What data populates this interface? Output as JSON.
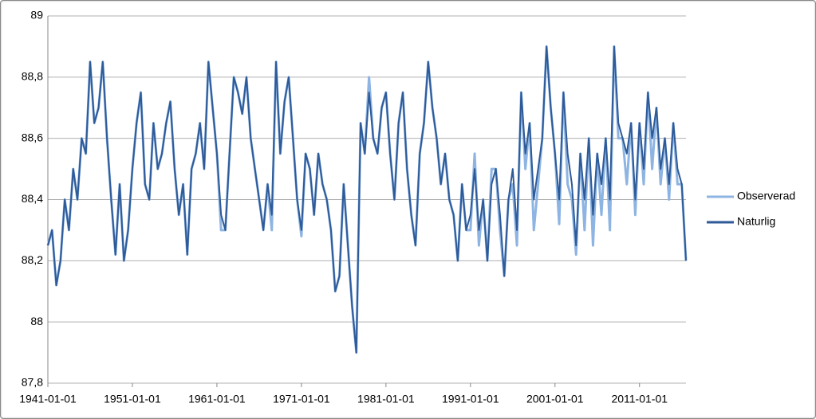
{
  "chart_data": {
    "type": "line",
    "x": [
      "1941-01-01",
      "1941-07-01",
      "1942-01-01",
      "1942-07-01",
      "1943-01-01",
      "1943-07-01",
      "1944-01-01",
      "1944-07-01",
      "1945-01-01",
      "1945-07-01",
      "1946-01-01",
      "1946-07-01",
      "1947-01-01",
      "1947-07-01",
      "1948-01-01",
      "1948-07-01",
      "1949-01-01",
      "1949-07-01",
      "1950-01-01",
      "1950-07-01",
      "1951-01-01",
      "1951-07-01",
      "1952-01-01",
      "1952-07-01",
      "1953-01-01",
      "1953-07-01",
      "1954-01-01",
      "1954-07-01",
      "1955-01-01",
      "1955-07-01",
      "1956-01-01",
      "1956-07-01",
      "1957-01-01",
      "1957-07-01",
      "1958-01-01",
      "1958-07-01",
      "1959-01-01",
      "1959-07-01",
      "1960-01-01",
      "1960-07-01",
      "1961-01-01",
      "1961-07-01",
      "1962-01-01",
      "1962-07-01",
      "1963-01-01",
      "1963-07-01",
      "1964-01-01",
      "1964-07-01",
      "1965-01-01",
      "1965-07-01",
      "1966-01-01",
      "1966-07-01",
      "1967-01-01",
      "1967-07-01",
      "1968-01-01",
      "1968-07-01",
      "1969-01-01",
      "1969-07-01",
      "1970-01-01",
      "1970-07-01",
      "1971-01-01",
      "1971-07-01",
      "1972-01-01",
      "1972-07-01",
      "1973-01-01",
      "1973-07-01",
      "1974-01-01",
      "1974-07-01",
      "1975-01-01",
      "1975-07-01",
      "1976-01-01",
      "1976-07-01",
      "1977-01-01",
      "1977-07-01",
      "1978-01-01",
      "1978-07-01",
      "1979-01-01",
      "1979-07-01",
      "1980-01-01",
      "1980-07-01",
      "1981-01-01",
      "1981-07-01",
      "1982-01-01",
      "1982-07-01",
      "1983-01-01",
      "1983-07-01",
      "1984-01-01",
      "1984-07-01",
      "1985-01-01",
      "1985-07-01",
      "1986-01-01",
      "1986-07-01",
      "1987-01-01",
      "1987-07-01",
      "1988-01-01",
      "1988-07-01",
      "1989-01-01",
      "1989-07-01",
      "1990-01-01",
      "1990-07-01",
      "1991-01-01",
      "1991-07-01",
      "1992-01-01",
      "1992-07-01",
      "1993-01-01",
      "1993-07-01",
      "1994-01-01",
      "1994-07-01",
      "1995-01-01",
      "1995-07-01",
      "1996-01-01",
      "1996-07-01",
      "1997-01-01",
      "1997-07-01",
      "1998-01-01",
      "1998-07-01",
      "1999-01-01",
      "1999-07-01",
      "2000-01-01",
      "2000-07-01",
      "2001-01-01",
      "2001-07-01",
      "2002-01-01",
      "2002-07-01",
      "2003-01-01",
      "2003-07-01",
      "2004-01-01",
      "2004-07-01",
      "2005-01-01",
      "2005-07-01",
      "2006-01-01",
      "2006-07-01",
      "2007-01-01",
      "2007-07-01",
      "2008-01-01",
      "2008-07-01",
      "2009-01-01",
      "2009-07-01",
      "2010-01-01",
      "2010-07-01",
      "2011-01-01",
      "2011-07-01",
      "2012-01-01",
      "2012-07-01",
      "2013-01-01",
      "2013-07-01",
      "2014-01-01",
      "2014-07-01",
      "2015-01-01",
      "2015-07-01",
      "2016-01-01",
      "2016-07-01"
    ],
    "series": [
      {
        "name": "Observerad",
        "color": "#8db4e2",
        "width": 3,
        "values": [
          88.25,
          88.3,
          88.12,
          88.2,
          88.4,
          88.3,
          88.5,
          88.4,
          88.6,
          88.55,
          88.85,
          88.65,
          88.7,
          88.85,
          88.6,
          88.4,
          88.22,
          88.45,
          88.2,
          88.3,
          88.5,
          88.65,
          88.75,
          88.45,
          88.4,
          88.65,
          88.5,
          88.55,
          88.65,
          88.72,
          88.5,
          88.35,
          88.45,
          88.22,
          88.5,
          88.55,
          88.65,
          88.5,
          88.85,
          88.7,
          88.55,
          88.3,
          88.3,
          88.55,
          88.8,
          88.75,
          88.68,
          88.8,
          88.6,
          88.5,
          88.4,
          88.3,
          88.45,
          88.3,
          88.85,
          88.55,
          88.72,
          88.8,
          88.6,
          88.4,
          88.28,
          88.55,
          88.5,
          88.35,
          88.55,
          88.45,
          88.4,
          88.3,
          88.1,
          88.15,
          88.45,
          88.25,
          88.05,
          87.9,
          88.65,
          88.55,
          88.8,
          88.6,
          88.55,
          88.7,
          88.75,
          88.55,
          88.4,
          88.65,
          88.75,
          88.5,
          88.35,
          88.25,
          88.55,
          88.65,
          88.85,
          88.7,
          88.6,
          88.45,
          88.55,
          88.4,
          88.35,
          88.2,
          88.45,
          88.3,
          88.3,
          88.55,
          88.25,
          88.4,
          88.2,
          88.5,
          88.5,
          88.3,
          88.15,
          88.4,
          88.45,
          88.25,
          88.75,
          88.5,
          88.65,
          88.3,
          88.45,
          88.6,
          88.9,
          88.7,
          88.55,
          88.32,
          88.75,
          88.45,
          88.4,
          88.22,
          88.55,
          88.3,
          88.6,
          88.25,
          88.55,
          88.35,
          88.6,
          88.3,
          88.9,
          88.6,
          88.6,
          88.45,
          88.65,
          88.35,
          88.65,
          88.45,
          88.75,
          88.5,
          88.7,
          88.45,
          88.6,
          88.4,
          88.65,
          88.45,
          88.45,
          88.2
        ]
      },
      {
        "name": "Naturlig",
        "color": "#2e5a98",
        "width": 2,
        "values": [
          88.25,
          88.3,
          88.12,
          88.2,
          88.4,
          88.3,
          88.5,
          88.4,
          88.6,
          88.55,
          88.85,
          88.65,
          88.7,
          88.85,
          88.6,
          88.4,
          88.22,
          88.45,
          88.2,
          88.3,
          88.5,
          88.65,
          88.75,
          88.45,
          88.4,
          88.65,
          88.5,
          88.55,
          88.65,
          88.72,
          88.5,
          88.35,
          88.45,
          88.22,
          88.5,
          88.55,
          88.65,
          88.5,
          88.85,
          88.7,
          88.55,
          88.35,
          88.3,
          88.55,
          88.8,
          88.75,
          88.68,
          88.8,
          88.6,
          88.5,
          88.4,
          88.3,
          88.45,
          88.35,
          88.85,
          88.55,
          88.72,
          88.8,
          88.6,
          88.4,
          88.3,
          88.55,
          88.5,
          88.35,
          88.55,
          88.45,
          88.4,
          88.3,
          88.1,
          88.15,
          88.45,
          88.25,
          88.05,
          87.9,
          88.65,
          88.55,
          88.75,
          88.6,
          88.55,
          88.7,
          88.75,
          88.55,
          88.4,
          88.65,
          88.75,
          88.5,
          88.35,
          88.25,
          88.55,
          88.65,
          88.85,
          88.7,
          88.6,
          88.45,
          88.55,
          88.4,
          88.35,
          88.2,
          88.45,
          88.3,
          88.35,
          88.5,
          88.3,
          88.4,
          88.2,
          88.45,
          88.5,
          88.35,
          88.15,
          88.4,
          88.5,
          88.3,
          88.75,
          88.55,
          88.65,
          88.4,
          88.5,
          88.6,
          88.9,
          88.7,
          88.55,
          88.4,
          88.75,
          88.55,
          88.45,
          88.25,
          88.55,
          88.4,
          88.6,
          88.35,
          88.55,
          88.45,
          88.6,
          88.4,
          88.9,
          88.65,
          88.6,
          88.55,
          88.65,
          88.4,
          88.65,
          88.5,
          88.75,
          88.6,
          88.7,
          88.5,
          88.6,
          88.45,
          88.65,
          88.5,
          88.45,
          88.2
        ]
      }
    ],
    "xlim": [
      "1941-01-01",
      "2016-07-01"
    ],
    "xticks": [
      "1941-01-01",
      "1951-01-01",
      "1961-01-01",
      "1971-01-01",
      "1981-01-01",
      "1991-01-01",
      "2001-01-01",
      "2011-01-01"
    ],
    "ylim": [
      87.8,
      89
    ],
    "yticks": [
      {
        "value": 87.8,
        "label": "87,8"
      },
      88,
      {
        "value": 88.2,
        "label": "88,2"
      },
      {
        "value": 88.4,
        "label": "88,4"
      },
      {
        "value": 88.6,
        "label": "88,6"
      },
      {
        "value": 88.8,
        "label": "88,8"
      },
      89
    ],
    "grid": true,
    "legend": "right"
  }
}
